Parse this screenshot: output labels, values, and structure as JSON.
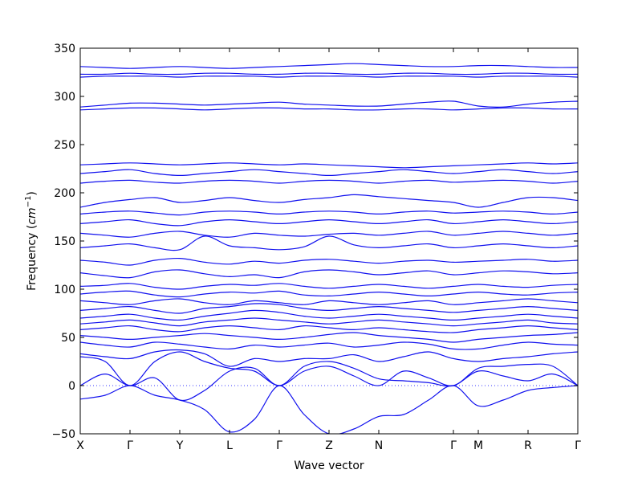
{
  "chart_data": {
    "type": "line",
    "title": "",
    "xlabel": "Wave vector",
    "ylabel": "Frequency",
    "ylabel_unit": "cm",
    "ylabel_unit_exp": "−1",
    "ylim": [
      -50,
      350
    ],
    "yticks": [
      -50,
      0,
      50,
      100,
      150,
      200,
      250,
      300,
      350
    ],
    "x_tick_labels": [
      "X",
      "Γ",
      "Y",
      "L",
      "Γ",
      "Z",
      "N",
      "Γ",
      "M",
      "R",
      "Γ"
    ],
    "x_tick_positions": [
      0,
      1,
      2,
      3,
      4,
      5,
      6,
      7.5,
      8,
      9,
      10
    ],
    "xlim": [
      0,
      10
    ],
    "zero_line": true,
    "line_color": "#1010ee",
    "series": [
      {
        "x": [
          0,
          0.5,
          1,
          1.5,
          2,
          2.5,
          3,
          3.5,
          4,
          4.5,
          5,
          5.5,
          6,
          6.5,
          7,
          7.5,
          8,
          8.5,
          9,
          9.5,
          10
        ],
        "values": [
          -14,
          -10,
          0,
          -10,
          -15,
          -25,
          -48,
          -35,
          0,
          -30,
          -50,
          -45,
          -32,
          -30,
          -15,
          0,
          -21,
          -15,
          -5,
          -2,
          0
        ]
      },
      {
        "x": [
          0,
          0.5,
          1,
          1.5,
          2,
          2.5,
          3,
          3.5,
          4,
          4.5,
          5,
          5.5,
          6,
          6.5,
          7,
          7.5,
          8,
          8.5,
          9,
          9.5,
          10
        ],
        "values": [
          0,
          12,
          0,
          8,
          -15,
          -5,
          15,
          18,
          0,
          20,
          25,
          18,
          7,
          5,
          3,
          0,
          15,
          10,
          5,
          12,
          0
        ]
      },
      {
        "x": [
          0,
          0.5,
          1,
          1.5,
          2,
          2.5,
          3,
          3.5,
          4,
          4.5,
          5,
          5.5,
          6,
          6.5,
          7,
          7.5,
          8,
          8.5,
          9,
          9.5,
          10
        ],
        "values": [
          30,
          25,
          0,
          25,
          35,
          25,
          18,
          15,
          0,
          15,
          20,
          10,
          0,
          15,
          8,
          0,
          18,
          20,
          22,
          20,
          0
        ]
      },
      {
        "x": [
          0,
          0.5,
          1,
          1.5,
          2,
          2.5,
          3,
          3.5,
          4,
          4.5,
          5,
          5.5,
          6,
          6.5,
          7,
          7.5,
          8,
          8.5,
          9,
          9.5,
          10
        ],
        "values": [
          33,
          30,
          28,
          35,
          37,
          33,
          20,
          28,
          25,
          28,
          28,
          32,
          25,
          30,
          35,
          28,
          25,
          28,
          30,
          33,
          35
        ]
      },
      {
        "x": [
          0,
          0.5,
          1,
          1.5,
          2,
          2.5,
          3,
          3.5,
          4,
          4.5,
          5,
          5.5,
          6,
          6.5,
          7,
          7.5,
          8,
          8.5,
          9,
          9.5,
          10
        ],
        "values": [
          45,
          42,
          40,
          45,
          43,
          40,
          38,
          42,
          40,
          42,
          44,
          40,
          42,
          45,
          43,
          38,
          38,
          42,
          45,
          43,
          42
        ]
      },
      {
        "x": [
          0,
          0.5,
          1,
          1.5,
          2,
          2.5,
          3,
          3.5,
          4,
          4.5,
          5,
          5.5,
          6,
          6.5,
          7,
          7.5,
          8,
          8.5,
          9,
          9.5,
          10
        ],
        "values": [
          52,
          50,
          48,
          50,
          52,
          54,
          52,
          50,
          48,
          50,
          53,
          55,
          52,
          50,
          48,
          45,
          48,
          50,
          52,
          53,
          55
        ]
      },
      {
        "x": [
          0,
          0.5,
          1,
          1.5,
          2,
          2.5,
          3,
          3.5,
          4,
          4.5,
          5,
          5.5,
          6,
          6.5,
          7,
          7.5,
          8,
          8.5,
          9,
          9.5,
          10
        ],
        "values": [
          58,
          60,
          62,
          58,
          56,
          60,
          62,
          60,
          58,
          62,
          60,
          58,
          60,
          58,
          56,
          55,
          58,
          60,
          62,
          60,
          58
        ]
      },
      {
        "x": [
          0,
          0.5,
          1,
          1.5,
          2,
          2.5,
          3,
          3.5,
          4,
          4.5,
          5,
          5.5,
          6,
          6.5,
          7,
          7.5,
          8,
          8.5,
          9,
          9.5,
          10
        ],
        "values": [
          64,
          66,
          68,
          65,
          62,
          66,
          68,
          70,
          68,
          66,
          64,
          66,
          68,
          66,
          64,
          62,
          64,
          66,
          68,
          65,
          64
        ]
      },
      {
        "x": [
          0,
          0.5,
          1,
          1.5,
          2,
          2.5,
          3,
          3.5,
          4,
          4.5,
          5,
          5.5,
          6,
          6.5,
          7,
          7.5,
          8,
          8.5,
          9,
          9.5,
          10
        ],
        "values": [
          70,
          72,
          74,
          70,
          68,
          72,
          75,
          78,
          76,
          72,
          70,
          72,
          74,
          72,
          70,
          68,
          70,
          72,
          74,
          72,
          70
        ]
      },
      {
        "x": [
          0,
          0.5,
          1,
          1.5,
          2,
          2.5,
          3,
          3.5,
          4,
          4.5,
          5,
          5.5,
          6,
          6.5,
          7,
          7.5,
          8,
          8.5,
          9,
          9.5,
          10
        ],
        "values": [
          78,
          80,
          82,
          78,
          75,
          80,
          82,
          85,
          84,
          80,
          78,
          80,
          82,
          80,
          78,
          76,
          78,
          80,
          82,
          80,
          78
        ]
      },
      {
        "x": [
          0,
          0.5,
          1,
          1.5,
          2,
          2.5,
          3,
          3.5,
          4,
          4.5,
          5,
          5.5,
          6,
          6.5,
          7,
          7.5,
          8,
          8.5,
          9,
          9.5,
          10
        ],
        "values": [
          88,
          86,
          84,
          88,
          90,
          86,
          84,
          88,
          86,
          84,
          88,
          86,
          84,
          86,
          88,
          84,
          86,
          88,
          90,
          88,
          86
        ]
      },
      {
        "x": [
          0,
          0.5,
          1,
          1.5,
          2,
          2.5,
          3,
          3.5,
          4,
          4.5,
          5,
          5.5,
          6,
          6.5,
          7,
          7.5,
          8,
          8.5,
          9,
          9.5,
          10
        ],
        "values": [
          95,
          97,
          98,
          94,
          92,
          95,
          97,
          96,
          98,
          94,
          93,
          95,
          97,
          95,
          93,
          95,
          97,
          95,
          94,
          96,
          97
        ]
      },
      {
        "x": [
          0,
          0.5,
          1,
          1.5,
          2,
          2.5,
          3,
          3.5,
          4,
          4.5,
          5,
          5.5,
          6,
          6.5,
          7,
          7.5,
          8,
          8.5,
          9,
          9.5,
          10
        ],
        "values": [
          103,
          104,
          106,
          102,
          100,
          103,
          105,
          104,
          106,
          103,
          101,
          103,
          105,
          103,
          101,
          103,
          105,
          103,
          102,
          104,
          105
        ]
      },
      {
        "x": [
          0,
          0.5,
          1,
          1.5,
          2,
          2.5,
          3,
          3.5,
          4,
          4.5,
          5,
          5.5,
          6,
          6.5,
          7,
          7.5,
          8,
          8.5,
          9,
          9.5,
          10
        ],
        "values": [
          117,
          114,
          112,
          118,
          120,
          116,
          113,
          115,
          112,
          118,
          120,
          118,
          115,
          117,
          119,
          115,
          117,
          119,
          118,
          116,
          117
        ]
      },
      {
        "x": [
          0,
          0.5,
          1,
          1.5,
          2,
          2.5,
          3,
          3.5,
          4,
          4.5,
          5,
          5.5,
          6,
          6.5,
          7,
          7.5,
          8,
          8.5,
          9,
          9.5,
          10
        ],
        "values": [
          130,
          128,
          125,
          130,
          132,
          128,
          126,
          129,
          127,
          130,
          131,
          129,
          127,
          129,
          130,
          128,
          129,
          130,
          131,
          129,
          130
        ]
      },
      {
        "x": [
          0,
          0.5,
          1,
          1.5,
          2,
          2.5,
          3,
          3.5,
          4,
          4.5,
          5,
          5.5,
          6,
          6.5,
          7,
          7.5,
          8,
          8.5,
          9,
          9.5,
          10
        ],
        "values": [
          143,
          145,
          147,
          143,
          141,
          155,
          145,
          143,
          141,
          144,
          155,
          146,
          143,
          145,
          147,
          143,
          145,
          147,
          145,
          143,
          145
        ]
      },
      {
        "x": [
          0,
          0.5,
          1,
          1.5,
          2,
          2.5,
          3,
          3.5,
          4,
          4.5,
          5,
          5.5,
          6,
          6.5,
          7,
          7.5,
          8,
          8.5,
          9,
          9.5,
          10
        ],
        "values": [
          158,
          156,
          154,
          158,
          160,
          156,
          154,
          158,
          156,
          155,
          157,
          158,
          156,
          158,
          160,
          156,
          158,
          160,
          158,
          156,
          158
        ]
      },
      {
        "x": [
          0,
          0.5,
          1,
          1.5,
          2,
          2.5,
          3,
          3.5,
          4,
          4.5,
          5,
          5.5,
          6,
          6.5,
          7,
          7.5,
          8,
          8.5,
          9,
          9.5,
          10
        ],
        "values": [
          168,
          170,
          172,
          168,
          166,
          170,
          172,
          170,
          168,
          170,
          172,
          170,
          168,
          170,
          172,
          168,
          170,
          172,
          170,
          168,
          170
        ]
      },
      {
        "x": [
          0,
          0.5,
          1,
          1.5,
          2,
          2.5,
          3,
          3.5,
          4,
          4.5,
          5,
          5.5,
          6,
          6.5,
          7,
          7.5,
          8,
          8.5,
          9,
          9.5,
          10
        ],
        "values": [
          178,
          180,
          181,
          179,
          177,
          180,
          181,
          180,
          178,
          180,
          181,
          180,
          178,
          180,
          181,
          179,
          180,
          181,
          180,
          178,
          180
        ]
      },
      {
        "x": [
          0,
          0.5,
          1,
          1.5,
          2,
          2.5,
          3,
          3.5,
          4,
          4.5,
          5,
          5.5,
          6,
          6.5,
          7,
          7.5,
          8,
          8.5,
          9,
          9.5,
          10
        ],
        "values": [
          185,
          190,
          193,
          195,
          190,
          192,
          195,
          192,
          190,
          193,
          195,
          198,
          196,
          194,
          192,
          190,
          185,
          190,
          195,
          195,
          192
        ]
      },
      {
        "x": [
          0,
          0.5,
          1,
          1.5,
          2,
          2.5,
          3,
          3.5,
          4,
          4.5,
          5,
          5.5,
          6,
          6.5,
          7,
          7.5,
          8,
          8.5,
          9,
          9.5,
          10
        ],
        "values": [
          210,
          212,
          213,
          211,
          210,
          212,
          213,
          212,
          210,
          212,
          213,
          212,
          210,
          212,
          213,
          211,
          212,
          213,
          212,
          210,
          212
        ]
      },
      {
        "x": [
          0,
          0.5,
          1,
          1.5,
          2,
          2.5,
          3,
          3.5,
          4,
          4.5,
          5,
          5.5,
          6,
          6.5,
          7,
          7.5,
          8,
          8.5,
          9,
          9.5,
          10
        ],
        "values": [
          220,
          222,
          224,
          220,
          218,
          220,
          222,
          224,
          222,
          220,
          218,
          220,
          222,
          224,
          222,
          220,
          222,
          224,
          222,
          220,
          222
        ]
      },
      {
        "x": [
          0,
          0.5,
          1,
          1.5,
          2,
          2.5,
          3,
          3.5,
          4,
          4.5,
          5,
          5.5,
          6,
          6.5,
          7,
          7.5,
          8,
          8.5,
          9,
          9.5,
          10
        ],
        "values": [
          229,
          230,
          231,
          230,
          229,
          230,
          231,
          230,
          229,
          230,
          229,
          228,
          227,
          226,
          227,
          228,
          229,
          230,
          231,
          230,
          231
        ]
      },
      {
        "x": [
          0,
          0.5,
          1,
          1.5,
          2,
          2.5,
          3,
          3.5,
          4,
          4.5,
          5,
          5.5,
          6,
          6.5,
          7,
          7.5,
          8,
          8.5,
          9,
          9.5,
          10
        ],
        "values": [
          286,
          287,
          288,
          288,
          287,
          286,
          287,
          288,
          288,
          287,
          287,
          286,
          286,
          287,
          287,
          286,
          287,
          288,
          288,
          287,
          287
        ]
      },
      {
        "x": [
          0,
          0.5,
          1,
          1.5,
          2,
          2.5,
          3,
          3.5,
          4,
          4.5,
          5,
          5.5,
          6,
          6.5,
          7,
          7.5,
          8,
          8.5,
          9,
          9.5,
          10
        ],
        "values": [
          289,
          291,
          293,
          293,
          292,
          291,
          292,
          293,
          294,
          292,
          291,
          290,
          290,
          292,
          294,
          295,
          290,
          289,
          292,
          294,
          295
        ]
      },
      {
        "x": [
          0,
          0.5,
          1,
          1.5,
          2,
          2.5,
          3,
          3.5,
          4,
          4.5,
          5,
          5.5,
          6,
          6.5,
          7,
          7.5,
          8,
          8.5,
          9,
          9.5,
          10
        ],
        "values": [
          320,
          321,
          321,
          321,
          320,
          321,
          321,
          321,
          320,
          321,
          321,
          321,
          320,
          321,
          321,
          321,
          320,
          321,
          321,
          321,
          320
        ]
      },
      {
        "x": [
          0,
          0.5,
          1,
          1.5,
          2,
          2.5,
          3,
          3.5,
          4,
          4.5,
          5,
          5.5,
          6,
          6.5,
          7,
          7.5,
          8,
          8.5,
          9,
          9.5,
          10
        ],
        "values": [
          323,
          323,
          324,
          323,
          323,
          324,
          324,
          323,
          323,
          324,
          324,
          323,
          323,
          324,
          324,
          323,
          323,
          324,
          324,
          323,
          323
        ]
      },
      {
        "x": [
          0,
          0.5,
          1,
          1.5,
          2,
          2.5,
          3,
          3.5,
          4,
          4.5,
          5,
          5.5,
          6,
          6.5,
          7,
          7.5,
          8,
          8.5,
          9,
          9.5,
          10
        ],
        "values": [
          331,
          330,
          329,
          330,
          331,
          330,
          329,
          330,
          331,
          332,
          333,
          334,
          333,
          332,
          331,
          331,
          332,
          332,
          331,
          330,
          330
        ]
      }
    ]
  }
}
